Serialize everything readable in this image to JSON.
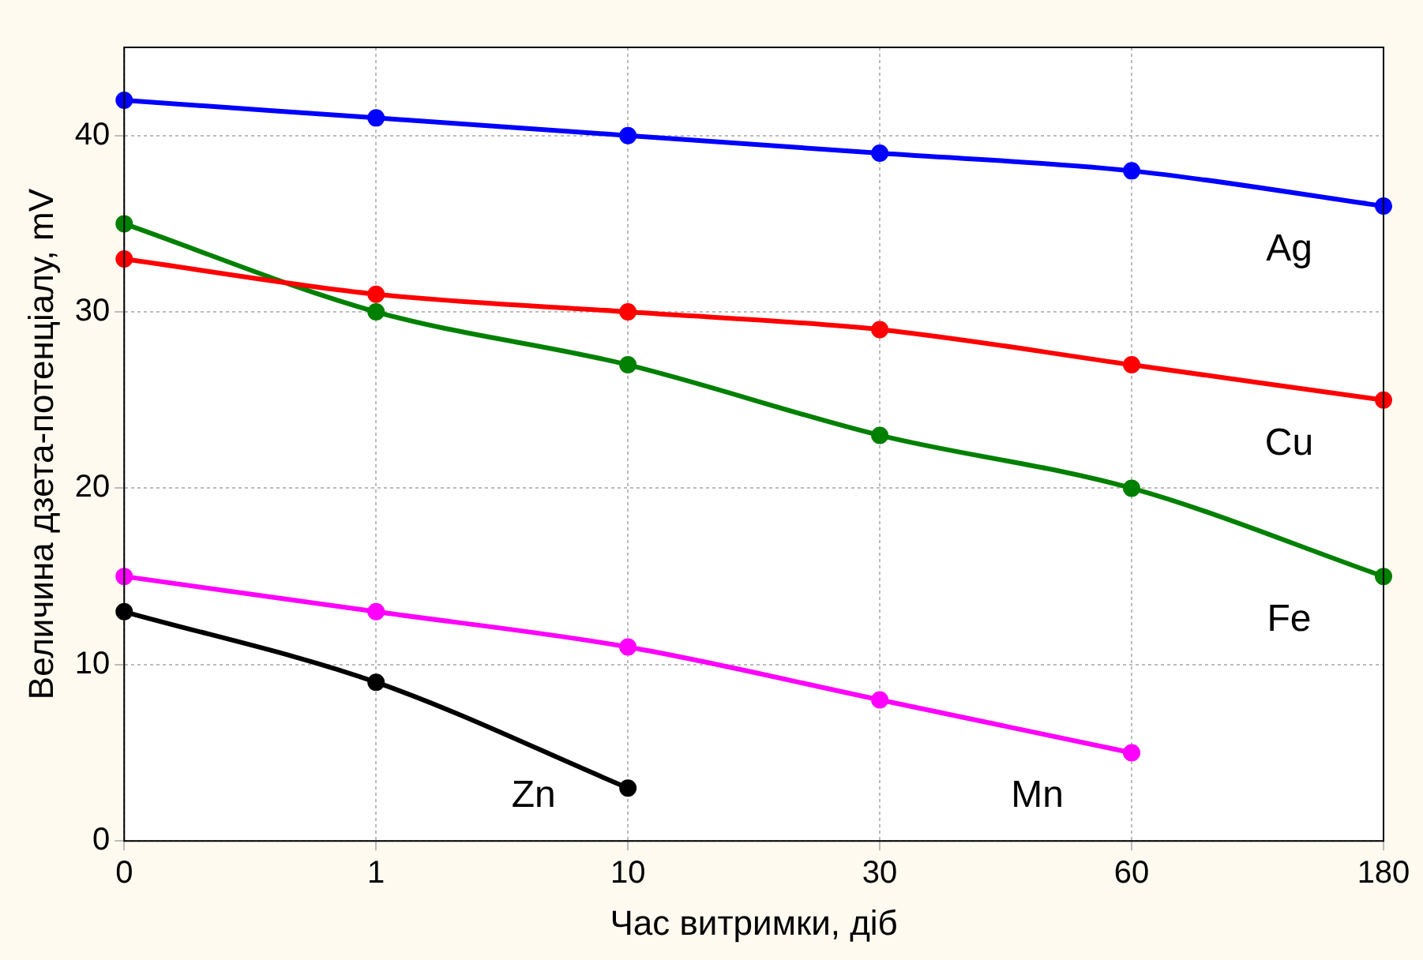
{
  "chart_data": {
    "type": "line",
    "xlabel": "Час витримки, діб",
    "ylabel": "Величина дзета-потенціалу, mV",
    "categories": [
      "0",
      "1",
      "10",
      "30",
      "60",
      "180"
    ],
    "series": [
      {
        "name": "Ag",
        "color": "#0000ff",
        "values": [
          42,
          41,
          40,
          39,
          38,
          36
        ]
      },
      {
        "name": "Cu",
        "color": "#ff0000",
        "values": [
          33,
          31,
          30,
          29,
          27,
          25
        ]
      },
      {
        "name": "Fe",
        "color": "#008000",
        "values": [
          35,
          30,
          27,
          23,
          20,
          15
        ]
      },
      {
        "name": "Mn",
        "color": "#ff00ff",
        "values": [
          15,
          13,
          11,
          8,
          5,
          null
        ]
      },
      {
        "name": "Zn",
        "color": "#000000",
        "values": [
          13,
          9,
          3,
          null,
          null,
          null
        ]
      }
    ],
    "ylim": [
      0,
      45
    ],
    "yticks": [
      0,
      10,
      20,
      30,
      40
    ],
    "grid": true,
    "legend": false,
    "marker": "circle",
    "line_style": "solid"
  }
}
